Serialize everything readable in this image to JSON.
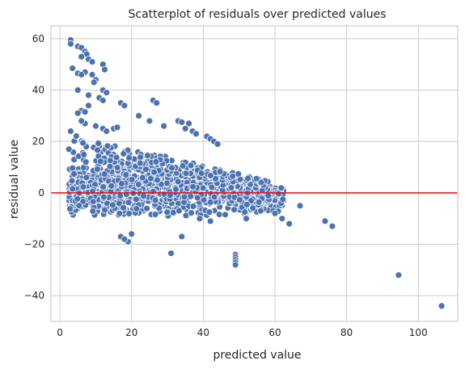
{
  "chart_data": {
    "type": "scatter",
    "title": "Scatterplot of residuals over predicted values",
    "xlabel": "predicted value",
    "ylabel": "residual value",
    "xlim": [
      -2.5,
      111
    ],
    "ylim": [
      -50,
      65
    ],
    "xticks": [
      0,
      20,
      40,
      60,
      80,
      100
    ],
    "yticks": [
      -40,
      -20,
      0,
      20,
      40,
      60
    ],
    "grid": true,
    "reference_line": {
      "y": 0,
      "color": "#ff0000"
    },
    "point_color": "#4c72b0",
    "points": [
      [
        3,
        59.5
      ],
      [
        3,
        58
      ],
      [
        5,
        57
      ],
      [
        6,
        56.5
      ],
      [
        7,
        55
      ],
      [
        7.5,
        54
      ],
      [
        6,
        53
      ],
      [
        8,
        52
      ],
      [
        9,
        51
      ],
      [
        12,
        50
      ],
      [
        12.5,
        48
      ],
      [
        3.5,
        48.5
      ],
      [
        7,
        47
      ],
      [
        9,
        46
      ],
      [
        5,
        46.5
      ],
      [
        6,
        46
      ],
      [
        10,
        44
      ],
      [
        9.5,
        43
      ],
      [
        12,
        40
      ],
      [
        13,
        39
      ],
      [
        5,
        40
      ],
      [
        8,
        38
      ],
      [
        11,
        37
      ],
      [
        12,
        36
      ],
      [
        17,
        35
      ],
      [
        18,
        34
      ],
      [
        8,
        34
      ],
      [
        6,
        32
      ],
      [
        7,
        31.5
      ],
      [
        5,
        31
      ],
      [
        26,
        36
      ],
      [
        27,
        35
      ],
      [
        22,
        30
      ],
      [
        25,
        28
      ],
      [
        29,
        26
      ],
      [
        33,
        28
      ],
      [
        34,
        27.5
      ],
      [
        36,
        27
      ],
      [
        35,
        25
      ],
      [
        37,
        24
      ],
      [
        38,
        23
      ],
      [
        41,
        22
      ],
      [
        42,
        21
      ],
      [
        43,
        20
      ],
      [
        44,
        19
      ],
      [
        15,
        25
      ],
      [
        16,
        25.5
      ],
      [
        10,
        26
      ],
      [
        12,
        25
      ],
      [
        13,
        24
      ],
      [
        7,
        27
      ],
      [
        6,
        28
      ],
      [
        3,
        24
      ],
      [
        2.5,
        17
      ],
      [
        20,
        -16
      ],
      [
        19,
        -19
      ],
      [
        17,
        -17
      ],
      [
        18,
        -18
      ],
      [
        31,
        -23.5
      ],
      [
        34,
        -17
      ],
      [
        49,
        -24
      ],
      [
        49,
        -25
      ],
      [
        49,
        -26
      ],
      [
        49,
        -27
      ],
      [
        49,
        -28
      ],
      [
        39,
        -10
      ],
      [
        42,
        -11
      ],
      [
        52,
        -10
      ],
      [
        56,
        -7
      ],
      [
        60,
        -8
      ],
      [
        62,
        -10
      ],
      [
        64,
        -12
      ],
      [
        67,
        -5
      ],
      [
        74,
        -11
      ],
      [
        76,
        -13
      ],
      [
        94.5,
        -32
      ],
      [
        106.5,
        -44
      ]
    ],
    "cloud_note_free": true
  }
}
